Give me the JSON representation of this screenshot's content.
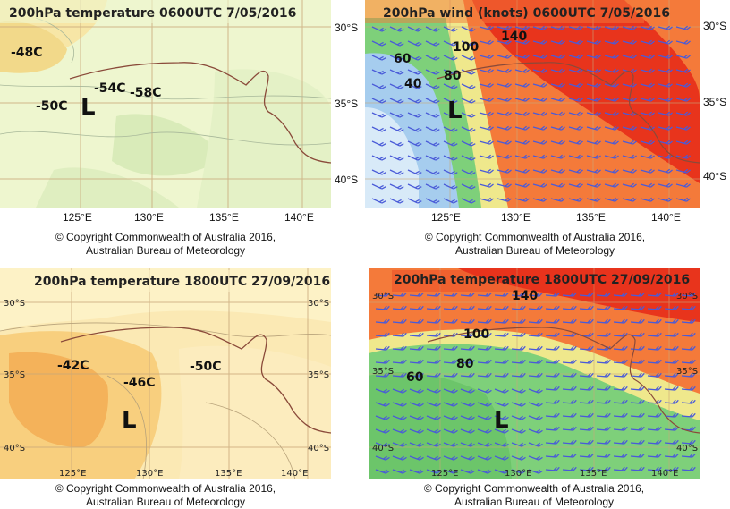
{
  "copyright": {
    "line1": "© Copyright  Commonwealth of Australia 2016,",
    "line2": "Australian Bureau of Meteorology"
  },
  "panels": [
    {
      "id": "temp-may",
      "title": "200hPa temperature 0600UTC 7/05/2016",
      "labels": [
        "-48C",
        "-50C",
        "-54C",
        "-58C",
        "L"
      ],
      "lat_ticks": [
        "30°S",
        "35°S",
        "40°S"
      ],
      "lon_ticks": [
        "125°E",
        "130°E",
        "135°E",
        "140°E"
      ]
    },
    {
      "id": "wind-may",
      "title": "200hPa wind (knots) 0600UTC 7/05/2016",
      "labels": [
        "140",
        "100",
        "80",
        "60",
        "40",
        "L"
      ],
      "lat_ticks": [
        "30°S",
        "35°S",
        "40°S"
      ],
      "lon_ticks": [
        "125°E",
        "130°E",
        "135°E",
        "140°E"
      ]
    },
    {
      "id": "temp-sep",
      "title": "200hPa temperature 1800UTC 27/09/2016",
      "labels": [
        "-42C",
        "-46C",
        "-50C",
        "L"
      ],
      "lat_ticks": [
        "30°S",
        "35°S",
        "40°S"
      ],
      "lon_ticks": [
        "125°E",
        "130°E",
        "135°E",
        "140°E"
      ]
    },
    {
      "id": "wind-sep",
      "title": "200hPa temperature 1800UTC 27/09/2016",
      "labels": [
        "140",
        "100",
        "80",
        "60",
        "L"
      ],
      "lat_ticks": [
        "30°S",
        "35°S",
        "40°S"
      ],
      "lon_ticks": [
        "125°E",
        "130°E",
        "135°E",
        "140°E"
      ]
    }
  ],
  "colors": {
    "temp_light": "#eef5d0",
    "temp_green": "#d6e8b6",
    "temp_orange": "#f4b25a",
    "wind_red": "#e8341c",
    "wind_orange": "#f47a3a",
    "wind_yellow": "#efe88c",
    "wind_green": "#7ed07a",
    "wind_blue": "#a6cdee",
    "barb": "#4a5bd8",
    "coast": "#8a4a3a",
    "grid": "#c9a87a"
  }
}
